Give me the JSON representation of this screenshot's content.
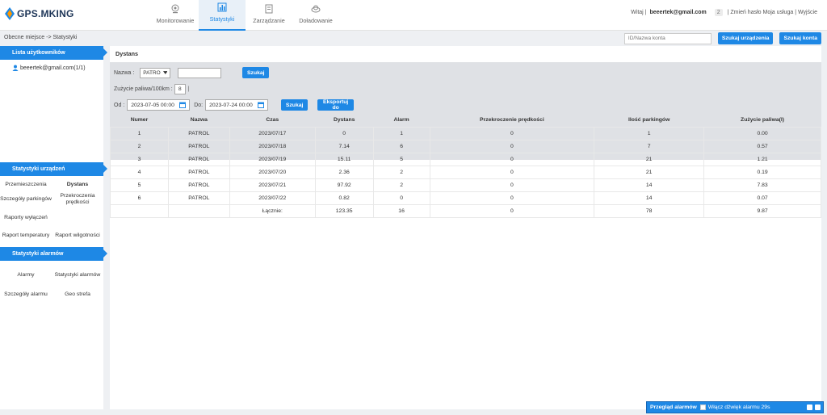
{
  "header": {
    "logo": "GPS.MKING",
    "nav": [
      {
        "label": "Monitorowanie",
        "icon": "monitor-icon"
      },
      {
        "label": "Statystyki",
        "icon": "chart-icon"
      },
      {
        "label": "Zarządzanie",
        "icon": "document-icon"
      },
      {
        "label": "Doładowanie",
        "icon": "cloud-icon"
      }
    ],
    "greeting": "Witaj |",
    "username": "beeertek@gmail.com",
    "badge": "2",
    "links": [
      "| Zmień hasło",
      "Moja usługa",
      "| Wyjście"
    ]
  },
  "breadcrumb": "Obecne miejsce -> Statystyki",
  "top_search": {
    "placeholder": "ID/Nazwa konta",
    "btn_device": "Szukaj urządzenia",
    "btn_account": "Szukaj konta"
  },
  "sidebar": {
    "users_title": "Lista użytkowników",
    "user_item": "beeertek@gmail.com(1/1)",
    "device_stats_title": "Statystyki urządzeń",
    "device_stats": [
      "Przemieszczenia",
      "Dystans",
      "Szczegóły parkingów",
      "Przekroczenia prędkości",
      "Raporty wyłączeń",
      "",
      "Raport temperatury",
      "Raport wilgotności"
    ],
    "alarm_stats_title": "Statystyki alarmów",
    "alarm_stats": [
      "Alarmy",
      "Statystyki alarmów",
      "Szczegóły alarmu",
      "Geo strefa"
    ]
  },
  "main": {
    "title": "Dystans",
    "filter": {
      "name_label": "Nazwa :",
      "name_value": "PATRO",
      "search_btn": "Szukaj",
      "fuel_label": "Zużycie paliwa/100km :",
      "fuel_value": "8",
      "from_label": "Od :",
      "from_value": "2023-07-05 00:00",
      "to_label": "Do:",
      "to_value": "2023-07-24 00:00",
      "search_btn2": "Szukaj",
      "export_btn": "Eksportuj do"
    },
    "table": {
      "headers": [
        "Numer",
        "Nazwa",
        "Czas",
        "Dystans",
        "Alarm",
        "Przekroczenie prędkości",
        "Ilość parkingów",
        "Zużycie paliwa(l)"
      ],
      "rows": [
        [
          "1",
          "PATROL",
          "2023/07/17",
          "0",
          "1",
          "0",
          "1",
          "0.00"
        ],
        [
          "2",
          "PATROL",
          "2023/07/18",
          "7.14",
          "6",
          "0",
          "7",
          "0.57"
        ],
        [
          "3",
          "PATROL",
          "2023/07/19",
          "15.11",
          "5",
          "0",
          "21",
          "1.21"
        ],
        [
          "4",
          "PATROL",
          "2023/07/20",
          "2.36",
          "2",
          "0",
          "21",
          "0.19"
        ],
        [
          "5",
          "PATROL",
          "2023/07/21",
          "97.92",
          "2",
          "0",
          "14",
          "7.83"
        ],
        [
          "6",
          "PATROL",
          "2023/07/22",
          "0.82",
          "0",
          "0",
          "14",
          "0.07"
        ]
      ],
      "total": [
        "",
        "",
        "Łącznie:",
        "123.35",
        "16",
        "0",
        "78",
        "9.87"
      ]
    }
  },
  "alarm_bar": {
    "title": "Przegląd alarmów",
    "sound": "Włącz dźwięk alarmu 29s"
  }
}
